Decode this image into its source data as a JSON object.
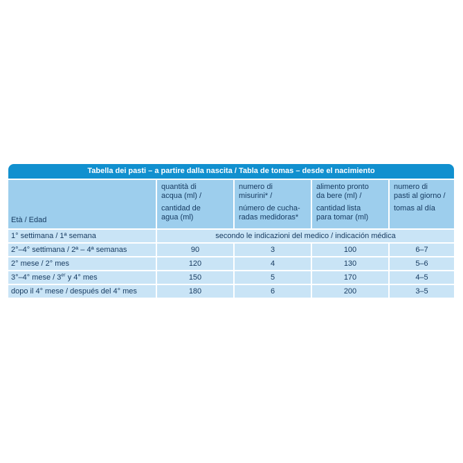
{
  "colors": {
    "title_bg": "#1190CF",
    "header_bg": "#9DCEED",
    "row_bg": "#C9E4F6",
    "text": "#15395F",
    "title_text": "#FFFFFF"
  },
  "title": "Tabella dei pasti – a partire dalla nascita / Tabla de tomas – desde el nacimiento",
  "table": {
    "header": {
      "age_label": "Età / Edad",
      "columns": [
        {
          "it_lines": [
            "quantità di",
            "acqua (ml) /"
          ],
          "es_lines": [
            "cantidad de",
            "agua (ml)"
          ]
        },
        {
          "it_lines": [
            "numero di",
            "misurini* /"
          ],
          "es_lines": [
            "número de cucha-",
            "radas medidoras*"
          ]
        },
        {
          "it_lines": [
            "alimento pronto",
            "da bere (ml) /"
          ],
          "es_lines": [
            "cantidad lista",
            "para tomar (ml)"
          ]
        },
        {
          "it_lines": [
            "numero di",
            "pasti al giorno /"
          ],
          "es_lines": [
            "tomas al día"
          ]
        }
      ]
    },
    "rows": [
      {
        "age": "1° settimana / 1ª semana",
        "merged": "secondo le indicazioni del medico / indicación médica"
      },
      {
        "age": "2°–4° settimana / 2ª – 4ª semanas",
        "water_ml": "90",
        "scoops": "3",
        "ready_ml": "100",
        "meals_per_day": "6–7"
      },
      {
        "age": "2° mese / 2° mes",
        "water_ml": "120",
        "scoops": "4",
        "ready_ml": "130",
        "meals_per_day": "5–6"
      },
      {
        "age_pre": "3°–4° mese / 3",
        "age_sup": "er",
        "age_post": " y 4° mes",
        "water_ml": "150",
        "scoops": "5",
        "ready_ml": "170",
        "meals_per_day": "4–5"
      },
      {
        "age": "dopo il 4° mese / después del 4° mes",
        "water_ml": "180",
        "scoops": "6",
        "ready_ml": "200",
        "meals_per_day": "3–5"
      }
    ]
  }
}
